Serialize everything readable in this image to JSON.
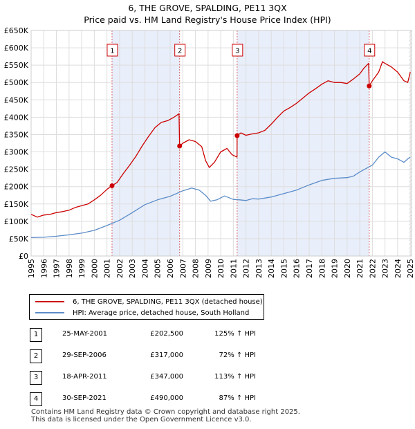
{
  "title_line1": "6, THE GROVE, SPALDING, PE11 3QX",
  "title_line2": "Price paid vs. HM Land Registry's House Price Index (HPI)",
  "chart_data": {
    "type": "line",
    "title": "6, THE GROVE, SPALDING, PE11 3QX — Price paid vs. HM Land Registry's House Price Index (HPI)",
    "xlim": [
      1995,
      2025.1
    ],
    "ylim": [
      0,
      650000
    ],
    "y_ticks": [
      0,
      50000,
      100000,
      150000,
      200000,
      250000,
      300000,
      350000,
      400000,
      450000,
      500000,
      550000,
      600000,
      650000
    ],
    "y_tick_labels": [
      "£0",
      "£50K",
      "£100K",
      "£150K",
      "£200K",
      "£250K",
      "£300K",
      "£350K",
      "£400K",
      "£450K",
      "£500K",
      "£550K",
      "£600K",
      "£650K"
    ],
    "x_ticks": [
      1995,
      1996,
      1997,
      1998,
      1999,
      2000,
      2001,
      2002,
      2003,
      2004,
      2005,
      2006,
      2007,
      2008,
      2009,
      2010,
      2011,
      2012,
      2013,
      2014,
      2015,
      2016,
      2017,
      2018,
      2019,
      2020,
      2021,
      2022,
      2023,
      2024,
      2025
    ],
    "x_tick_labels": [
      "1995",
      "1996",
      "1997",
      "1998",
      "1999",
      "2000",
      "2001",
      "2002",
      "2003",
      "2004",
      "2005",
      "2006",
      "2007",
      "2008",
      "2009",
      "2010",
      "2011",
      "2012",
      "2013",
      "2014",
      "2015",
      "2016",
      "2017",
      "2018",
      "2019",
      "2020",
      "2021",
      "2022",
      "2023",
      "2024",
      "2025"
    ],
    "series": [
      {
        "name": "6, THE GROVE, SPALDING, PE11 3QX (detached house)",
        "color": "#cc0000",
        "x": [
          1995.0,
          1995.5,
          1996.0,
          1996.5,
          1997.0,
          1997.5,
          1998.0,
          1998.5,
          1999.0,
          1999.5,
          2000.0,
          2000.5,
          2001.0,
          2001.4,
          2001.8,
          2002.3,
          2002.8,
          2003.3,
          2003.8,
          2004.3,
          2004.8,
          2005.3,
          2005.8,
          2006.3,
          2006.7,
          2006.75,
          2007.0,
          2007.5,
          2008.0,
          2008.5,
          2008.8,
          2009.1,
          2009.5,
          2010.0,
          2010.5,
          2010.9,
          2011.29,
          2011.3,
          2011.6,
          2012.0,
          2012.5,
          2013.0,
          2013.5,
          2014.0,
          2014.5,
          2015.0,
          2015.5,
          2016.0,
          2016.5,
          2017.0,
          2017.5,
          2018.0,
          2018.5,
          2019.0,
          2019.5,
          2020.0,
          2020.5,
          2021.0,
          2021.3,
          2021.7,
          2021.75,
          2022.0,
          2022.5,
          2022.8,
          2023.0,
          2023.5,
          2024.0,
          2024.5,
          2024.8,
          2025.0
        ],
        "values": [
          120000,
          112000,
          118000,
          120000,
          125000,
          128000,
          132000,
          140000,
          145000,
          150000,
          162000,
          175000,
          192000,
          202500,
          212000,
          238000,
          262000,
          288000,
          318000,
          345000,
          370000,
          385000,
          390000,
          400000,
          410000,
          317000,
          325000,
          335000,
          330000,
          315000,
          275000,
          255000,
          270000,
          300000,
          310000,
          292000,
          285000,
          347000,
          355000,
          348000,
          352000,
          355000,
          362000,
          380000,
          400000,
          418000,
          428000,
          440000,
          455000,
          470000,
          482000,
          495000,
          505000,
          500000,
          500000,
          497000,
          510000,
          525000,
          540000,
          555000,
          490000,
          505000,
          530000,
          560000,
          555000,
          545000,
          530000,
          505000,
          500000,
          530000
        ]
      },
      {
        "name": "HPI: Average price, detached house, South Holland",
        "color": "#5b8cc8",
        "x": [
          1995.0,
          1996.0,
          1997.0,
          1998.0,
          1999.0,
          2000.0,
          2001.0,
          2002.0,
          2003.0,
          2004.0,
          2005.0,
          2006.0,
          2007.0,
          2007.7,
          2008.3,
          2008.8,
          2009.2,
          2009.7,
          2010.3,
          2011.0,
          2011.5,
          2012.0,
          2012.5,
          2013.0,
          2014.0,
          2015.0,
          2016.0,
          2017.0,
          2018.0,
          2019.0,
          2020.0,
          2020.5,
          2021.0,
          2021.5,
          2022.0,
          2022.5,
          2023.0,
          2023.5,
          2024.0,
          2024.5,
          2024.8,
          2025.0
        ],
        "values": [
          53000,
          54000,
          57000,
          61000,
          66000,
          74000,
          88000,
          103000,
          125000,
          148000,
          162000,
          172000,
          188000,
          196000,
          190000,
          175000,
          158000,
          162000,
          173000,
          163000,
          162000,
          160000,
          165000,
          164000,
          170000,
          180000,
          190000,
          205000,
          218000,
          224000,
          226000,
          230000,
          242000,
          252000,
          262000,
          285000,
          300000,
          285000,
          280000,
          270000,
          280000,
          285000
        ]
      }
    ],
    "sales": [
      {
        "label": "1",
        "x": 2001.4,
        "y": 202500
      },
      {
        "label": "2",
        "x": 2006.75,
        "y": 317000
      },
      {
        "label": "3",
        "x": 2011.3,
        "y": 347000
      },
      {
        "label": "4",
        "x": 2021.75,
        "y": 490000
      }
    ],
    "shaded_ranges": [
      [
        2001.4,
        2006.75
      ],
      [
        2011.3,
        2021.75
      ]
    ],
    "hatched_from": 2024.9,
    "grid": true
  },
  "legend": {
    "series1_label": "6, THE GROVE, SPALDING, PE11 3QX (detached house)",
    "series2_label": "HPI: Average price, detached house, South Holland",
    "series1_color": "#cc0000",
    "series2_color": "#5b8cc8"
  },
  "transactions": [
    {
      "num": "1",
      "date": "25-MAY-2001",
      "price": "£202,500",
      "hpi": "125% ↑ HPI"
    },
    {
      "num": "2",
      "date": "29-SEP-2006",
      "price": "£317,000",
      "hpi": "72% ↑ HPI"
    },
    {
      "num": "3",
      "date": "18-APR-2011",
      "price": "£347,000",
      "hpi": "113% ↑ HPI"
    },
    {
      "num": "4",
      "date": "30-SEP-2021",
      "price": "£490,000",
      "hpi": "87% ↑ HPI"
    }
  ],
  "footer_line1": "Contains HM Land Registry data © Crown copyright and database right 2025.",
  "footer_line2": "This data is licensed under the Open Government Licence v3.0."
}
